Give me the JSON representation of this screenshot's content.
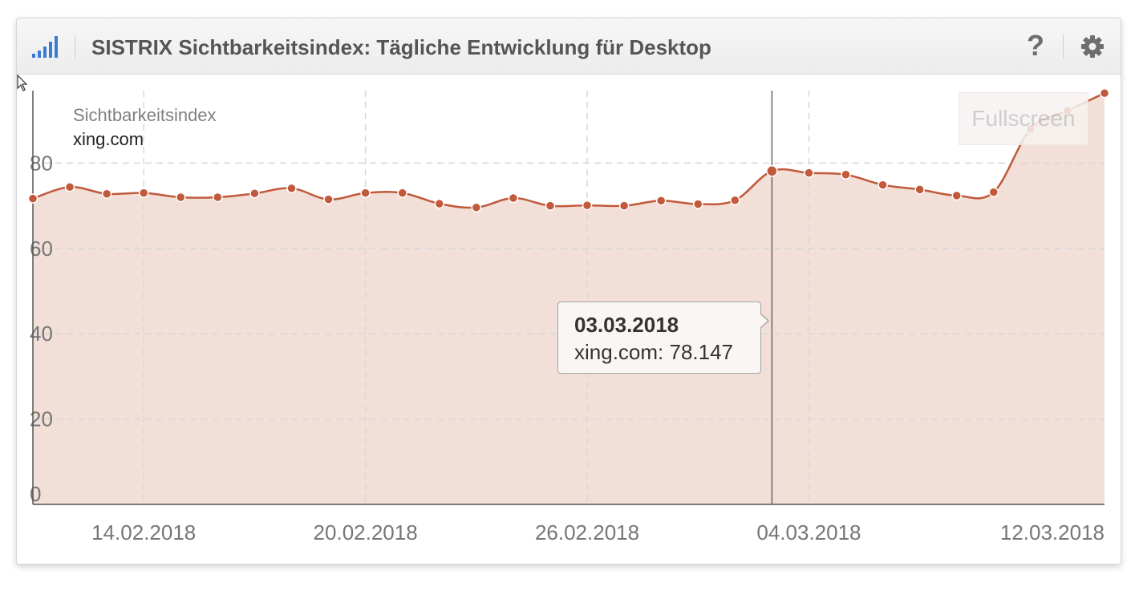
{
  "header": {
    "title": "SISTRIX Sichtbarkeitsindex: Tägliche Entwicklung für Desktop",
    "help_icon": "?",
    "bars_icon": "signal-bars-icon",
    "settings_icon": "gear-icon"
  },
  "colors": {
    "series": "#c1593a",
    "area": "#f0ddd6",
    "accent": "#3a7bd5"
  },
  "fullscreen_label": "Fullscreen",
  "legend": {
    "title": "Sichtbarkeitsindex",
    "series": "xing.com"
  },
  "tooltip": {
    "date": "03.03.2018",
    "value_text": "xing.com: 78.147"
  },
  "chart_data": {
    "type": "area",
    "x": [
      "11.02.2018",
      "12.02.2018",
      "13.02.2018",
      "14.02.2018",
      "15.02.2018",
      "16.02.2018",
      "17.02.2018",
      "18.02.2018",
      "19.02.2018",
      "20.02.2018",
      "21.02.2018",
      "22.02.2018",
      "23.02.2018",
      "24.02.2018",
      "25.02.2018",
      "26.02.2018",
      "27.02.2018",
      "28.02.2018",
      "01.03.2018",
      "02.03.2018",
      "03.03.2018",
      "04.03.2018",
      "05.03.2018",
      "06.03.2018",
      "07.03.2018",
      "08.03.2018",
      "09.03.2018",
      "10.03.2018",
      "11.03.2018",
      "12.03.2018"
    ],
    "series": [
      {
        "name": "xing.com",
        "values": [
          71.7,
          74.4,
          72.8,
          73.0,
          72.0,
          72.0,
          72.9,
          74.1,
          71.5,
          73.0,
          73.0,
          70.5,
          69.6,
          71.8,
          70.0,
          70.1,
          70.0,
          71.2,
          70.4,
          71.3,
          78.147,
          77.7,
          77.3,
          74.9,
          73.8,
          72.4,
          73.2,
          88.0,
          92.3,
          96.4
        ]
      }
    ],
    "x_tick_labels": [
      "14.02.2018",
      "20.02.2018",
      "26.02.2018",
      "04.03.2018",
      "12.03.2018"
    ],
    "y_tick_labels": [
      "0",
      "20",
      "40",
      "60",
      "80"
    ],
    "ylim": [
      0,
      97
    ],
    "grid": true,
    "legend_position": "top-left",
    "highlighted_point": "03.03.2018"
  }
}
